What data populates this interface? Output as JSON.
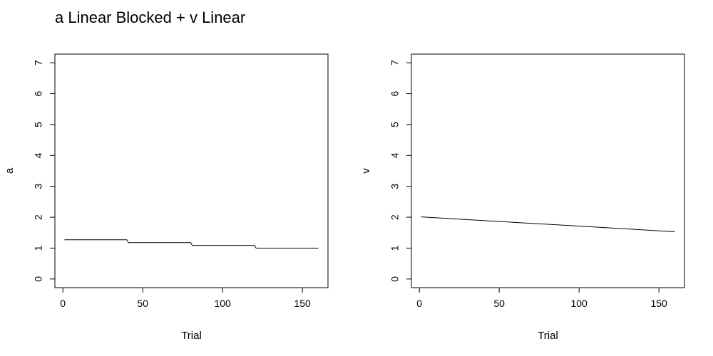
{
  "title": "a Linear Blocked + v Linear",
  "chart_data": [
    {
      "type": "line",
      "xlabel": "Trial",
      "ylabel": "a",
      "xlim": [
        -5,
        166
      ],
      "ylim": [
        -0.28,
        7.28
      ],
      "x_ticks": [
        0,
        50,
        100,
        150
      ],
      "y_ticks": [
        0,
        1,
        2,
        3,
        4,
        5,
        6,
        7
      ],
      "grid": false,
      "series": [
        {
          "x": [
            1,
            40,
            41,
            80,
            81,
            120,
            121,
            160
          ],
          "y": [
            1.27,
            1.27,
            1.18,
            1.18,
            1.09,
            1.09,
            1.0,
            1.0
          ]
        }
      ]
    },
    {
      "type": "line",
      "xlabel": "Trial",
      "ylabel": "v",
      "xlim": [
        -5,
        166
      ],
      "ylim": [
        -0.28,
        7.28
      ],
      "x_ticks": [
        0,
        50,
        100,
        150
      ],
      "y_ticks": [
        0,
        1,
        2,
        3,
        4,
        5,
        6,
        7
      ],
      "grid": false,
      "series": [
        {
          "x": [
            1,
            160
          ],
          "y": [
            2.01,
            1.53
          ]
        }
      ]
    }
  ]
}
